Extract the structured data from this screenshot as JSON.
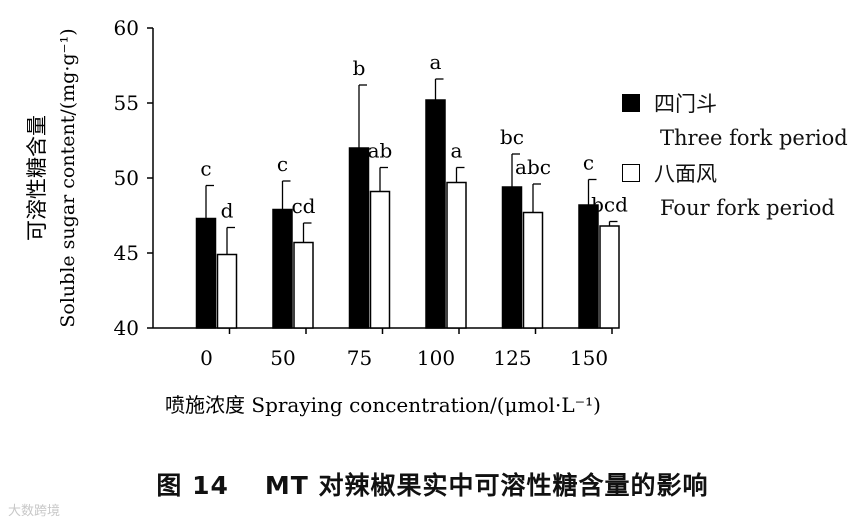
{
  "chart_data": {
    "type": "bar",
    "categories": [
      "0",
      "50",
      "75",
      "100",
      "125",
      "150"
    ],
    "series": [
      {
        "name": "四门斗",
        "name_en": "Three fork period",
        "color": "#000000",
        "values": [
          47.3,
          47.9,
          52.0,
          55.2,
          49.4,
          48.2
        ],
        "errors": [
          2.2,
          1.9,
          4.2,
          1.4,
          2.2,
          1.7
        ],
        "letters": [
          "c",
          "c",
          "b",
          "a",
          "bc",
          "c"
        ]
      },
      {
        "name": "八面风",
        "name_en": "Four fork period",
        "color": "#ffffff",
        "values": [
          44.9,
          45.7,
          49.1,
          49.7,
          47.7,
          46.8
        ],
        "errors": [
          1.8,
          1.3,
          1.6,
          1.0,
          1.9,
          0.3
        ],
        "letters": [
          "d",
          "cd",
          "ab",
          "a",
          "abc",
          "bcd"
        ]
      }
    ],
    "yticks": [
      "40",
      "45",
      "50",
      "55",
      "60"
    ],
    "ylim": [
      40,
      60
    ],
    "ylabel_cn": "可溶性糖含量",
    "ylabel_en": "Soluble sugar content/(mg·g⁻¹)",
    "xlabel": "喷施浓度 Spraying concentration/(μmol·L⁻¹)",
    "legend_position": "right",
    "grid": false
  },
  "caption": {
    "number": "图 14",
    "title": "MT 对辣椒果实中可溶性糖含量的影响"
  },
  "watermark": "大数跨境"
}
